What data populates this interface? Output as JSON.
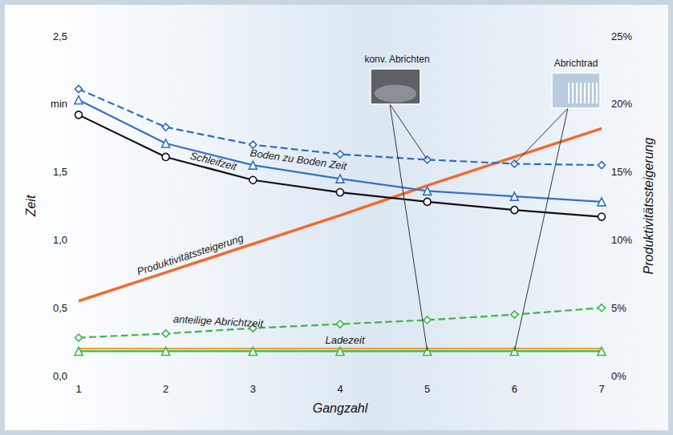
{
  "chart_data": {
    "type": "line",
    "x": [
      1,
      2,
      3,
      4,
      5,
      6,
      7
    ],
    "xlim": [
      1,
      7
    ],
    "xticks": [
      1,
      2,
      3,
      4,
      5,
      6,
      7
    ],
    "x_label": "Gangzahl",
    "y_label": "Zeit",
    "y2_label": "Produktivitätssteigerung",
    "ylim": [
      0,
      2.5
    ],
    "yticks": [
      {
        "value": 0,
        "label": "0,0"
      },
      {
        "value": 0.5,
        "label": "0,5"
      },
      {
        "value": 1,
        "label": "1,0"
      },
      {
        "value": 1.5,
        "label": "1,5"
      },
      {
        "value": 2,
        "label": "min"
      },
      {
        "value": 2.5,
        "label": "2,5"
      }
    ],
    "y2lim": [
      0,
      25
    ],
    "y2ticks": [
      {
        "value": 0,
        "label": "0%"
      },
      {
        "value": 5,
        "label": "5%"
      },
      {
        "value": 10,
        "label": "10%"
      },
      {
        "value": 15,
        "label": "15%"
      },
      {
        "value": 20,
        "label": "20%"
      },
      {
        "value": 25,
        "label": "25%"
      }
    ],
    "grid": false,
    "series": [
      {
        "name": "Boden zu Boden Zeit",
        "color": "#2e6cc4",
        "line_style": "dashed",
        "marker": "diamond",
        "values": [
          2.11,
          1.83,
          1.7,
          1.63,
          1.59,
          1.56,
          1.55
        ]
      },
      {
        "color": "#3570c8",
        "line_style": "solid",
        "marker": "triangle",
        "values": [
          2.03,
          1.71,
          1.55,
          1.45,
          1.36,
          1.32,
          1.28
        ]
      },
      {
        "name": "Schleifzeit",
        "color": "#111111",
        "line_style": "solid",
        "marker": "circle",
        "values": [
          1.92,
          1.61,
          1.44,
          1.35,
          1.28,
          1.22,
          1.17
        ]
      },
      {
        "name": "Produktivitätssteigerung",
        "color": "#f26a2e",
        "axis": "y2",
        "line_style": "solid",
        "marker": "none",
        "values": [
          5.5,
          7.6,
          9.7,
          11.8,
          14.0,
          16.1,
          18.2
        ]
      },
      {
        "name": "anteilige Abrichtzeit",
        "color": "#3db54a",
        "line_style": "dashed",
        "marker": "diamond",
        "values": [
          0.28,
          0.31,
          0.35,
          0.38,
          0.41,
          0.45,
          0.5
        ]
      },
      {
        "color": "#f0a030",
        "line_style": "solid",
        "marker": "none",
        "values": [
          0.2,
          0.2,
          0.2,
          0.2,
          0.2,
          0.2,
          0.2
        ]
      },
      {
        "name": "Ladezeit",
        "color": "#3db54a",
        "line_style": "solid",
        "marker": "triangle",
        "values": [
          0.18,
          0.18,
          0.18,
          0.18,
          0.18,
          0.18,
          0.18
        ]
      }
    ],
    "annotations": [
      {
        "text": "konv. Abrichten",
        "x": 5
      },
      {
        "text": "Abrichtrad",
        "x": 6
      }
    ]
  }
}
